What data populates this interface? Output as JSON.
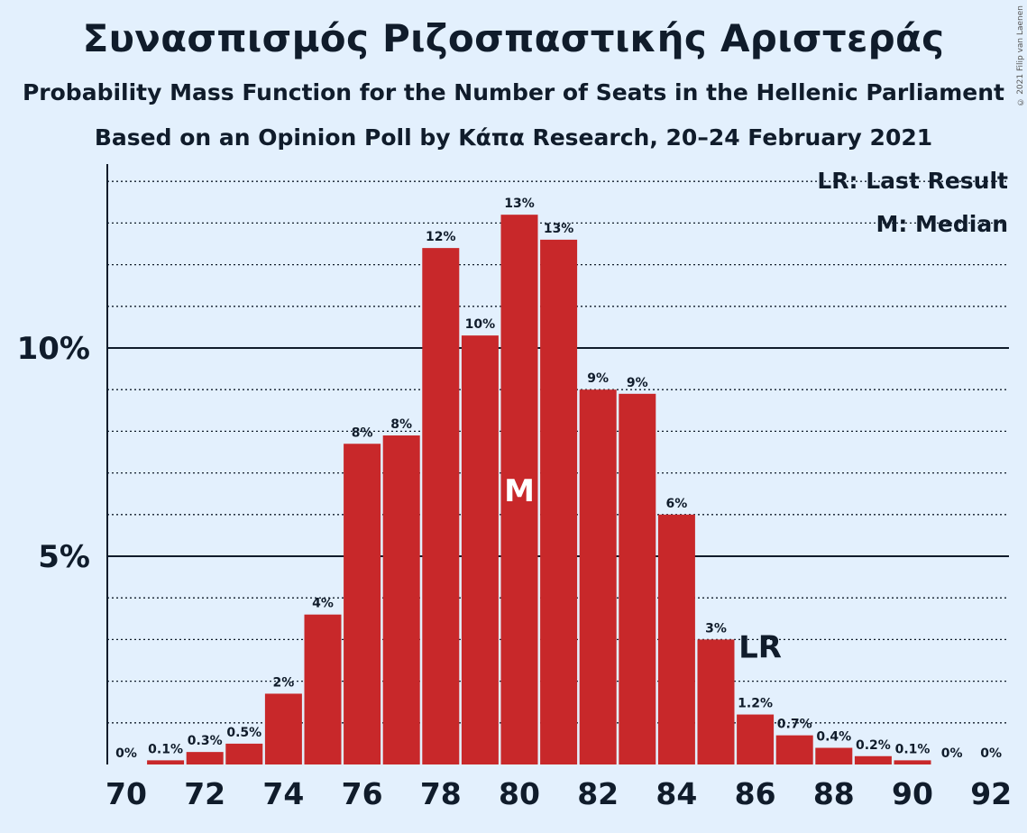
{
  "header": {
    "title": "Συνασπισμός Ριζοσπαστικής Αριστεράς",
    "subtitle": "Probability Mass Function for the Number of Seats in the Hellenic Parliament",
    "subtitle2": "Based on an Opinion Poll by Κάπα Research, 20–24 February 2021",
    "copyright": "© 2021 Filip van Laenen"
  },
  "legend": {
    "last_result": "LR: Last Result",
    "median": "M: Median"
  },
  "colors": {
    "bar": "#c8282a",
    "background": "#e3f0fd",
    "text": "#101c2b"
  },
  "chart_data": {
    "type": "bar",
    "x": [
      70,
      71,
      72,
      73,
      74,
      75,
      76,
      77,
      78,
      79,
      80,
      81,
      82,
      83,
      84,
      85,
      86,
      87,
      88,
      89,
      90,
      91,
      92
    ],
    "values": [
      0.0,
      0.1,
      0.3,
      0.5,
      1.7,
      3.6,
      7.7,
      7.9,
      12.4,
      10.3,
      13.2,
      12.6,
      9.0,
      8.9,
      6.0,
      3.0,
      1.2,
      0.7,
      0.4,
      0.2,
      0.1,
      0.0,
      0.0
    ],
    "labels": [
      "0%",
      "0.1%",
      "0.3%",
      "0.5%",
      "2%",
      "4%",
      "8%",
      "8%",
      "12%",
      "10%",
      "13%",
      "13%",
      "9%",
      "9%",
      "6%",
      "3%",
      "1.2%",
      "0.7%",
      "0.4%",
      "0.2%",
      "0.1%",
      "0%",
      "0%"
    ],
    "x_ticks": [
      70,
      72,
      74,
      76,
      78,
      80,
      82,
      84,
      86,
      88,
      90,
      92
    ],
    "y_ticks": [
      {
        "value": 5,
        "label": "5%"
      },
      {
        "value": 10,
        "label": "10%"
      }
    ],
    "ylim": [
      0,
      14.3
    ],
    "minor_grid_step": 1,
    "median": 80,
    "median_label": "M",
    "last_result": 86,
    "last_result_label": "LR",
    "legend_position": "top-right"
  }
}
